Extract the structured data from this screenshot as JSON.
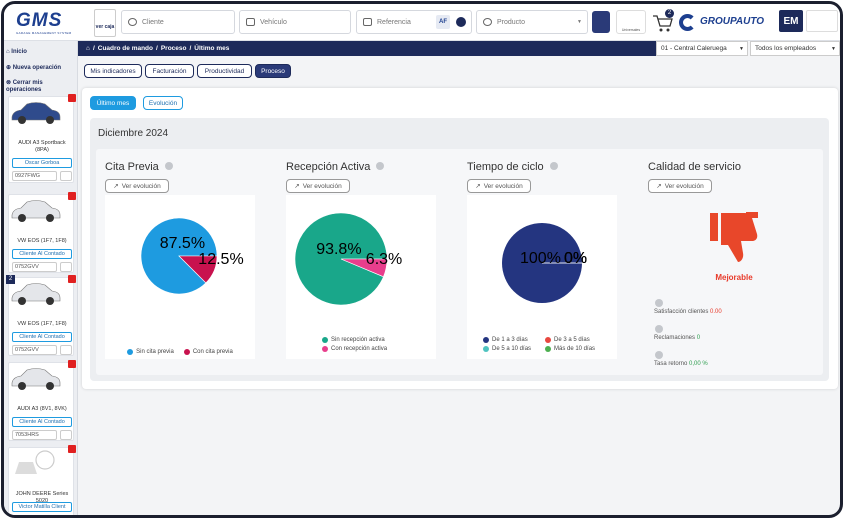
{
  "header": {
    "logo": "GMS",
    "logo_sub": "GARAGE MANAGEMENT SYSTEM",
    "caja": "ver caja",
    "cliente": "Cliente",
    "vehiculo": "Vehículo",
    "referencia": "Referencia",
    "af": "AF",
    "producto": "Producto",
    "universales": "Universales",
    "cart_count": "2",
    "brand": "GROUPAUTO",
    "user": "EM"
  },
  "sidebar": {
    "items": [
      "Inicio",
      "Nueva operación",
      "Cerrar mis operaciones"
    ],
    "vehicles": [
      {
        "model": "AUDI A3 Sportback (8PA)",
        "client": "Oscar Gorboa",
        "plate": "0927FWG"
      },
      {
        "model": "VW EOS (1F7, 1F8)",
        "client": "Cliente Al Contado",
        "plate": "0752GVV"
      },
      {
        "badge": "2",
        "model": "VW EOS (1F7, 1F8)",
        "client": "Cliente Al Contado",
        "plate": "0752GVV"
      },
      {
        "model": "AUDI A3 (8V1, 8VK)",
        "client": "Cliente Al Contado",
        "plate": "7053HRS"
      },
      {
        "model": "JOHN DEERE Series 5020",
        "client": "Victor Matilla Client"
      }
    ]
  },
  "breadcrumb": [
    "Cuadro de mando",
    "Proceso",
    "Último mes"
  ],
  "branch": "01 - Central Caleruega",
  "employees": "Todos los empleados",
  "tabs": [
    "Mis indicadores",
    "Facturación",
    "Productividad",
    "Proceso"
  ],
  "subtabs": [
    "Último mes",
    "Evolución"
  ],
  "period": "Diciembre 2024",
  "ver_evolucion": "Ver evolución",
  "chart_data": [
    {
      "type": "pie",
      "title": "Cita Previa",
      "categories": [
        "Sin cita previa",
        "Con cita previa"
      ],
      "values": [
        87.5,
        12.5
      ],
      "value_labels": [
        "87.5%",
        "12.5%"
      ],
      "colors": [
        "#1e9be0",
        "#c8124e"
      ]
    },
    {
      "type": "pie",
      "title": "Recepción Activa",
      "categories": [
        "Sin recepción activa",
        "Con recepción activa"
      ],
      "values": [
        93.8,
        6.3
      ],
      "value_labels": [
        "93.8%",
        "6.3%"
      ],
      "colors": [
        "#19a78a",
        "#e83e8c"
      ]
    },
    {
      "type": "pie",
      "title": "Tiempo de ciclo",
      "categories": [
        "De 1 a 3 días",
        "De 3 a 5 días",
        "De 5 a 10 días",
        "Más de 10 días"
      ],
      "values": [
        100,
        0,
        0,
        0
      ],
      "value_labels": [
        "100%",
        "0%",
        "0%",
        "0%"
      ],
      "colors": [
        "#243580",
        "#e8473f",
        "#4fc3c0",
        "#4caf50"
      ]
    }
  ],
  "quality": {
    "title": "Calidad de servicio",
    "status": "Mejorable",
    "items": [
      {
        "label": "Satisfacción clientes",
        "value": "0.00"
      },
      {
        "label": "Reclamaciones",
        "value": "0"
      },
      {
        "label": "Tasa retorno",
        "value": "0,00 %"
      }
    ]
  }
}
